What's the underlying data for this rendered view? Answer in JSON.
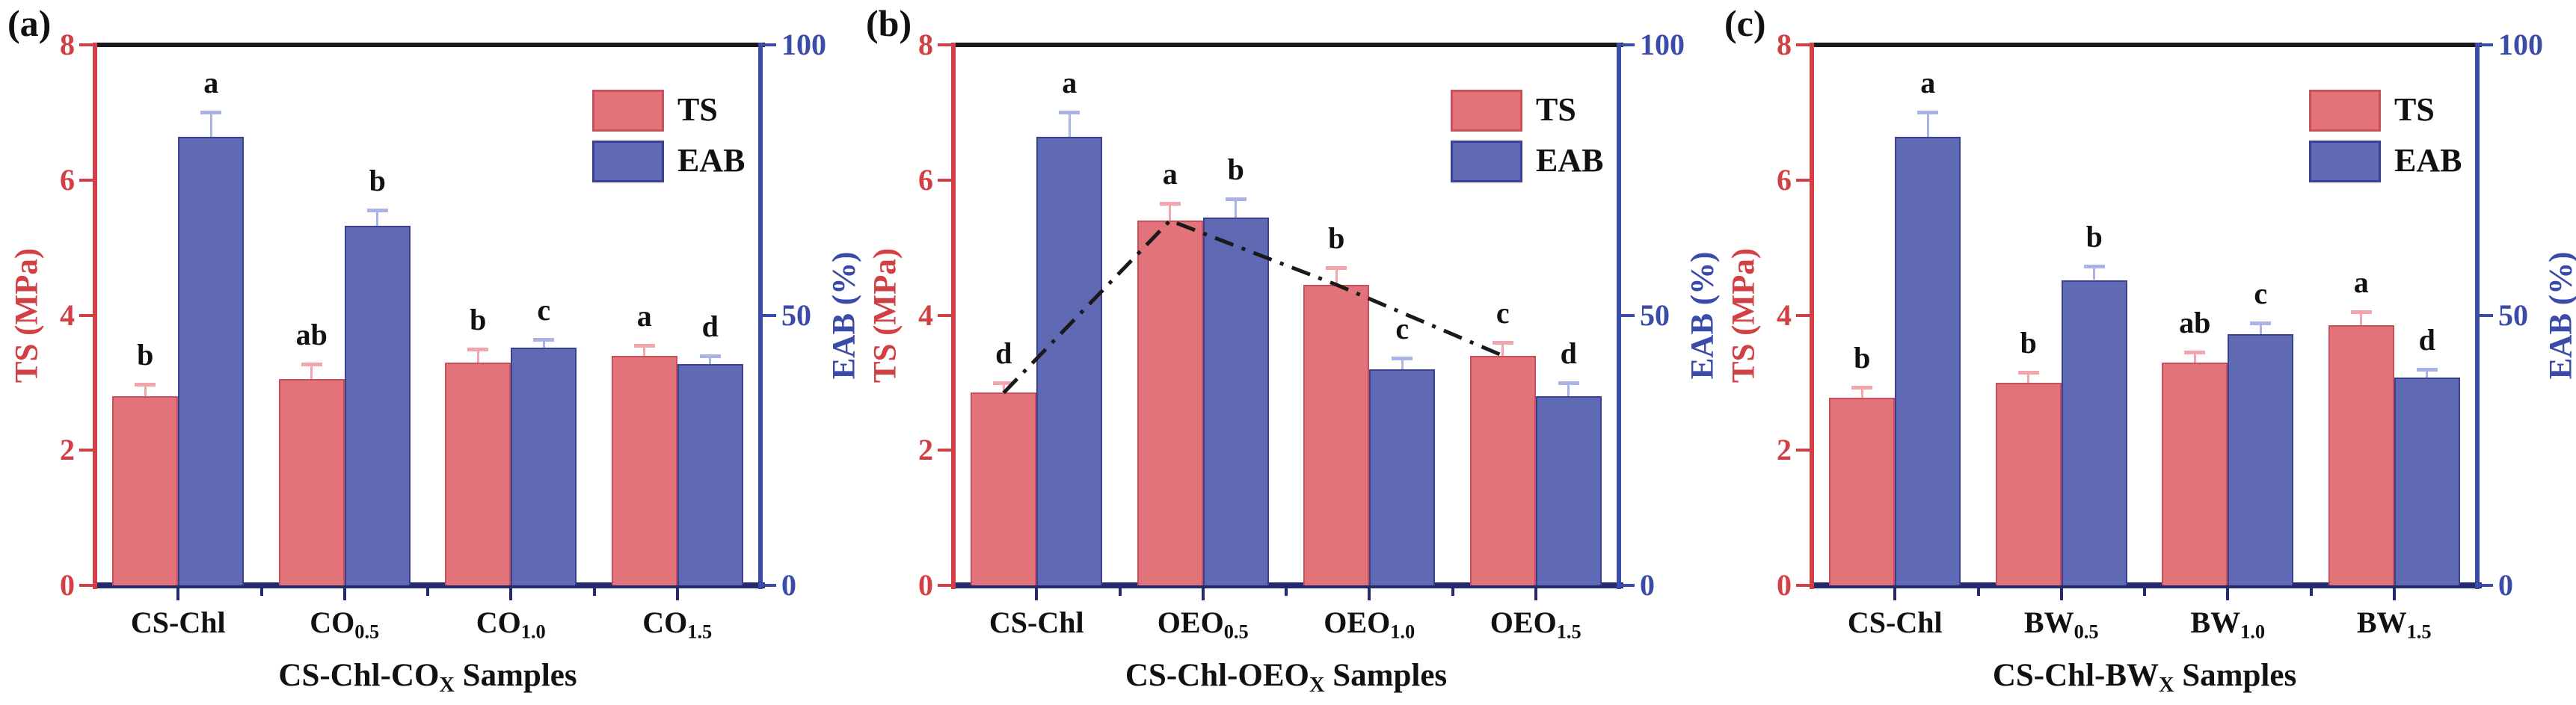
{
  "figure_title": "",
  "legend": {
    "items": [
      "TS",
      "EAB"
    ]
  },
  "colors": {
    "ts_fill": "#e2737b",
    "ts_edge": "#c94f59",
    "eab_fill": "#6069b4",
    "eab_edge": "#3a4193",
    "left_axis": "#d23f44",
    "right_axis": "#3b4ba8",
    "top_axis": "#1a1a1a",
    "bottom_axis": "#232b6e",
    "ts_err": "#f2a6ab",
    "eab_err": "#aab3e6",
    "letter": "#111111",
    "trend": "#1a1a1a"
  },
  "chart_data": [
    {
      "type": "bar",
      "panel_label": "(a)",
      "xlabel_prefix": "CS-Chl-CO",
      "xlabel_sub": "X",
      "xlabel_suffix": " Samples",
      "ylabel_left": "TS (MPa)",
      "ylabel_right": "EAB (%)",
      "ylim_left": [
        0,
        8
      ],
      "ylim_right": [
        0,
        100
      ],
      "yticks_left": [
        0,
        2,
        4,
        6,
        8
      ],
      "yticks_right": [
        0,
        50,
        100
      ],
      "categories": [
        {
          "base": "CS-Chl",
          "sub": ""
        },
        {
          "base": "CO",
          "sub": "0.5"
        },
        {
          "base": "CO",
          "sub": "1.0"
        },
        {
          "base": "CO",
          "sub": "1.5"
        }
      ],
      "series": [
        {
          "name": "TS",
          "axis": "left",
          "values": [
            2.8,
            3.05,
            3.3,
            3.4
          ],
          "errors": [
            0.18,
            0.22,
            0.2,
            0.15
          ],
          "letters": [
            "b",
            "ab",
            "b",
            "a"
          ]
        },
        {
          "name": "EAB",
          "axis": "right",
          "values": [
            83,
            66.5,
            44,
            41
          ],
          "errors": [
            4.5,
            3,
            1.5,
            1.5
          ],
          "letters": [
            "a",
            "b",
            "c",
            "d"
          ]
        }
      ],
      "trend_line": null
    },
    {
      "type": "bar",
      "panel_label": "(b)",
      "xlabel_prefix": "CS-Chl-OEO",
      "xlabel_sub": "X",
      "xlabel_suffix": " Samples",
      "ylabel_left": "TS (MPa)",
      "ylabel_right": "EAB (%)",
      "ylim_left": [
        0,
        8
      ],
      "ylim_right": [
        0,
        100
      ],
      "yticks_left": [
        0,
        2,
        4,
        6,
        8
      ],
      "yticks_right": [
        0,
        50,
        100
      ],
      "categories": [
        {
          "base": "CS-Chl",
          "sub": ""
        },
        {
          "base": "OEO",
          "sub": "0.5"
        },
        {
          "base": "OEO",
          "sub": "1.0"
        },
        {
          "base": "OEO",
          "sub": "1.5"
        }
      ],
      "series": [
        {
          "name": "TS",
          "axis": "left",
          "values": [
            2.85,
            5.4,
            4.45,
            3.4
          ],
          "errors": [
            0.15,
            0.25,
            0.25,
            0.2
          ],
          "letters": [
            "d",
            "a",
            "b",
            "c"
          ]
        },
        {
          "name": "EAB",
          "axis": "right",
          "values": [
            83,
            68,
            40,
            35
          ],
          "errors": [
            4.5,
            3.5,
            2,
            2.5
          ],
          "letters": [
            "a",
            "b",
            "c",
            "d"
          ]
        }
      ],
      "trend_line": {
        "follows_series": "TS",
        "style": "dash-dot"
      }
    },
    {
      "type": "bar",
      "panel_label": "(c)",
      "xlabel_prefix": "CS-Chl-BW",
      "xlabel_sub": "X",
      "xlabel_suffix": " Samples",
      "ylabel_left": "TS (MPa)",
      "ylabel_right": "EAB (%)",
      "ylim_left": [
        0,
        8
      ],
      "ylim_right": [
        0,
        100
      ],
      "yticks_left": [
        0,
        2,
        4,
        6,
        8
      ],
      "yticks_right": [
        0,
        50,
        100
      ],
      "categories": [
        {
          "base": "CS-Chl",
          "sub": ""
        },
        {
          "base": "BW",
          "sub": "0.5"
        },
        {
          "base": "BW",
          "sub": "1.0"
        },
        {
          "base": "BW",
          "sub": "1.5"
        }
      ],
      "series": [
        {
          "name": "TS",
          "axis": "left",
          "values": [
            2.78,
            3.0,
            3.3,
            3.85
          ],
          "errors": [
            0.15,
            0.15,
            0.15,
            0.2
          ],
          "letters": [
            "b",
            "b",
            "ab",
            "a"
          ]
        },
        {
          "name": "EAB",
          "axis": "right",
          "values": [
            83,
            56.5,
            46.5,
            38.5
          ],
          "errors": [
            4.5,
            2.5,
            2,
            1.5
          ],
          "letters": [
            "a",
            "b",
            "c",
            "d"
          ]
        }
      ],
      "trend_line": null
    }
  ]
}
